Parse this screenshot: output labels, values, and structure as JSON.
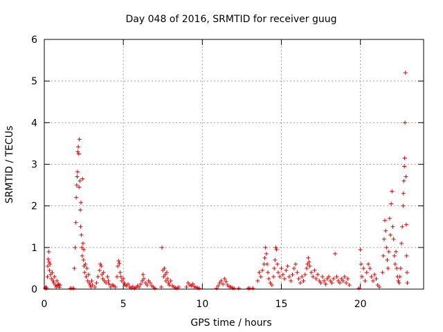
{
  "chart_data": {
    "type": "scatter",
    "title": "Day 048 of 2016, SRMTID for receiver guug",
    "xlabel": "GPS time / hours",
    "ylabel": "SRMTID / TECUs",
    "xlim": [
      0,
      24
    ],
    "ylim": [
      0,
      6
    ],
    "xticks": [
      0,
      5,
      10,
      15,
      20
    ],
    "yticks": [
      0,
      1,
      2,
      3,
      4,
      5,
      6
    ],
    "grid": true,
    "marker": "+",
    "color": "#e00000",
    "series": [
      {
        "name": "SRMTID",
        "points": [
          [
            0.05,
            0.02
          ],
          [
            0.1,
            0.05
          ],
          [
            0.15,
            0.02
          ],
          [
            0.2,
            0.3
          ],
          [
            0.22,
            0.55
          ],
          [
            0.25,
            0.72
          ],
          [
            0.28,
            0.9
          ],
          [
            0.3,
            0.65
          ],
          [
            0.33,
            0.45
          ],
          [
            0.36,
            0.6
          ],
          [
            0.4,
            0.35
          ],
          [
            0.45,
            0.25
          ],
          [
            0.5,
            0.4
          ],
          [
            0.55,
            0.2
          ],
          [
            0.6,
            0.15
          ],
          [
            0.65,
            0.3
          ],
          [
            0.7,
            0.1
          ],
          [
            0.75,
            0.05
          ],
          [
            0.8,
            0.2
          ],
          [
            0.85,
            0.08
          ],
          [
            0.9,
            0.12
          ],
          [
            0.95,
            0.04
          ],
          [
            1.0,
            0.1
          ],
          [
            1.65,
            0.02
          ],
          [
            1.75,
            0.02
          ],
          [
            1.85,
            0.02
          ],
          [
            1.9,
            0.5
          ],
          [
            1.95,
            1.0
          ],
          [
            2.0,
            1.6
          ],
          [
            2.02,
            2.2
          ],
          [
            2.05,
            2.5
          ],
          [
            2.08,
            2.7
          ],
          [
            2.1,
            2.82
          ],
          [
            2.12,
            3.3
          ],
          [
            2.15,
            3.42
          ],
          [
            2.18,
            3.25
          ],
          [
            2.2,
            2.45
          ],
          [
            2.22,
            3.6
          ],
          [
            2.25,
            2.6
          ],
          [
            2.28,
            1.9
          ],
          [
            2.3,
            1.5
          ],
          [
            2.32,
            2.08
          ],
          [
            2.35,
            1.3
          ],
          [
            2.38,
            1.0
          ],
          [
            2.4,
            0.8
          ],
          [
            2.42,
            2.65
          ],
          [
            2.45,
            1.1
          ],
          [
            2.48,
            0.7
          ],
          [
            2.5,
            0.95
          ],
          [
            2.52,
            0.55
          ],
          [
            2.55,
            0.4
          ],
          [
            2.6,
            0.6
          ],
          [
            2.65,
            0.3
          ],
          [
            2.7,
            0.5
          ],
          [
            2.75,
            0.2
          ],
          [
            2.8,
            0.35
          ],
          [
            2.85,
            0.15
          ],
          [
            2.9,
            0.1
          ],
          [
            2.95,
            0.05
          ],
          [
            3.0,
            0.2
          ],
          [
            3.05,
            0.1
          ],
          [
            3.2,
            0.05
          ],
          [
            3.3,
            0.15
          ],
          [
            3.4,
            0.3
          ],
          [
            3.5,
            0.45
          ],
          [
            3.55,
            0.6
          ],
          [
            3.6,
            0.55
          ],
          [
            3.65,
            0.35
          ],
          [
            3.7,
            0.25
          ],
          [
            3.75,
            0.4
          ],
          [
            3.8,
            0.2
          ],
          [
            3.9,
            0.15
          ],
          [
            4.0,
            0.3
          ],
          [
            4.05,
            0.2
          ],
          [
            4.1,
            0.12
          ],
          [
            4.2,
            0.05
          ],
          [
            4.3,
            0.1
          ],
          [
            4.4,
            0.08
          ],
          [
            4.5,
            0.05
          ],
          [
            4.6,
            0.3
          ],
          [
            4.65,
            0.55
          ],
          [
            4.7,
            0.68
          ],
          [
            4.75,
            0.62
          ],
          [
            4.8,
            0.4
          ],
          [
            4.85,
            0.3
          ],
          [
            4.9,
            0.2
          ],
          [
            5.0,
            0.25
          ],
          [
            5.05,
            0.15
          ],
          [
            5.1,
            0.1
          ],
          [
            5.2,
            0.08
          ],
          [
            5.3,
            0.12
          ],
          [
            5.4,
            0.05
          ],
          [
            5.5,
            0.03
          ],
          [
            5.6,
            0.06
          ],
          [
            5.7,
            0.02
          ],
          [
            5.8,
            0.04
          ],
          [
            5.9,
            0.08
          ],
          [
            6.0,
            0.05
          ],
          [
            6.1,
            0.12
          ],
          [
            6.2,
            0.2
          ],
          [
            6.25,
            0.35
          ],
          [
            6.3,
            0.25
          ],
          [
            6.4,
            0.15
          ],
          [
            6.5,
            0.1
          ],
          [
            6.6,
            0.2
          ],
          [
            6.7,
            0.15
          ],
          [
            6.8,
            0.08
          ],
          [
            6.9,
            0.05
          ],
          [
            7.0,
            0.02
          ],
          [
            7.4,
            0.05
          ],
          [
            7.45,
            1.0
          ],
          [
            7.5,
            0.45
          ],
          [
            7.55,
            0.3
          ],
          [
            7.6,
            0.5
          ],
          [
            7.65,
            0.35
          ],
          [
            7.7,
            0.2
          ],
          [
            7.75,
            0.4
          ],
          [
            7.8,
            0.25
          ],
          [
            7.85,
            0.15
          ],
          [
            7.9,
            0.1
          ],
          [
            8.0,
            0.2
          ],
          [
            8.1,
            0.08
          ],
          [
            8.2,
            0.05
          ],
          [
            8.3,
            0.03
          ],
          [
            8.4,
            0.02
          ],
          [
            8.5,
            0.05
          ],
          [
            9.0,
            0.05
          ],
          [
            9.1,
            0.15
          ],
          [
            9.2,
            0.1
          ],
          [
            9.3,
            0.08
          ],
          [
            9.4,
            0.12
          ],
          [
            9.5,
            0.06
          ],
          [
            9.6,
            0.04
          ],
          [
            9.7,
            0.03
          ],
          [
            9.8,
            0.02
          ],
          [
            10.9,
            0.02
          ],
          [
            11.0,
            0.08
          ],
          [
            11.1,
            0.15
          ],
          [
            11.2,
            0.2
          ],
          [
            11.3,
            0.12
          ],
          [
            11.4,
            0.25
          ],
          [
            11.5,
            0.18
          ],
          [
            11.6,
            0.1
          ],
          [
            11.7,
            0.06
          ],
          [
            11.8,
            0.05
          ],
          [
            11.9,
            0.03
          ],
          [
            12.0,
            0.02
          ],
          [
            12.3,
            0.02
          ],
          [
            12.9,
            0.02
          ],
          [
            13.0,
            0.02
          ],
          [
            13.2,
            0.02
          ],
          [
            13.5,
            0.2
          ],
          [
            13.6,
            0.4
          ],
          [
            13.7,
            0.3
          ],
          [
            13.8,
            0.45
          ],
          [
            13.9,
            0.6
          ],
          [
            13.95,
            0.75
          ],
          [
            14.0,
            1.0
          ],
          [
            14.05,
            0.85
          ],
          [
            14.1,
            0.6
          ],
          [
            14.15,
            0.4
          ],
          [
            14.2,
            0.25
          ],
          [
            14.3,
            0.15
          ],
          [
            14.4,
            0.1
          ],
          [
            14.5,
            0.3
          ],
          [
            14.55,
            0.5
          ],
          [
            14.6,
            0.7
          ],
          [
            14.65,
            1.0
          ],
          [
            14.7,
            0.95
          ],
          [
            14.75,
            0.6
          ],
          [
            14.8,
            0.4
          ],
          [
            14.9,
            0.3
          ],
          [
            15.0,
            0.5
          ],
          [
            15.1,
            0.35
          ],
          [
            15.2,
            0.25
          ],
          [
            15.3,
            0.45
          ],
          [
            15.4,
            0.55
          ],
          [
            15.5,
            0.3
          ],
          [
            15.6,
            0.2
          ],
          [
            15.7,
            0.35
          ],
          [
            15.8,
            0.5
          ],
          [
            15.9,
            0.6
          ],
          [
            16.0,
            0.4
          ],
          [
            16.1,
            0.25
          ],
          [
            16.2,
            0.15
          ],
          [
            16.3,
            0.3
          ],
          [
            16.4,
            0.2
          ],
          [
            16.5,
            0.35
          ],
          [
            16.6,
            0.5
          ],
          [
            16.65,
            0.6
          ],
          [
            16.7,
            0.75
          ],
          [
            16.75,
            0.65
          ],
          [
            16.8,
            0.55
          ],
          [
            16.9,
            0.4
          ],
          [
            17.0,
            0.3
          ],
          [
            17.1,
            0.45
          ],
          [
            17.2,
            0.25
          ],
          [
            17.3,
            0.35
          ],
          [
            17.4,
            0.2
          ],
          [
            17.5,
            0.15
          ],
          [
            17.6,
            0.3
          ],
          [
            17.7,
            0.2
          ],
          [
            17.8,
            0.12
          ],
          [
            17.9,
            0.25
          ],
          [
            18.0,
            0.3
          ],
          [
            18.1,
            0.2
          ],
          [
            18.2,
            0.15
          ],
          [
            18.3,
            0.25
          ],
          [
            18.4,
            0.85
          ],
          [
            18.5,
            0.3
          ],
          [
            18.6,
            0.2
          ],
          [
            18.7,
            0.15
          ],
          [
            18.8,
            0.25
          ],
          [
            18.9,
            0.2
          ],
          [
            19.0,
            0.3
          ],
          [
            19.1,
            0.15
          ],
          [
            19.2,
            0.25
          ],
          [
            19.3,
            0.1
          ],
          [
            19.9,
            0.02
          ],
          [
            20.0,
            0.95
          ],
          [
            20.05,
            0.6
          ],
          [
            20.1,
            0.3
          ],
          [
            20.2,
            0.5
          ],
          [
            20.3,
            0.2
          ],
          [
            20.4,
            0.4
          ],
          [
            20.5,
            0.6
          ],
          [
            20.6,
            0.5
          ],
          [
            20.7,
            0.3
          ],
          [
            20.8,
            0.2
          ],
          [
            20.9,
            0.35
          ],
          [
            21.0,
            0.25
          ],
          [
            21.1,
            0.1
          ],
          [
            21.2,
            0.05
          ],
          [
            21.4,
            0.4
          ],
          [
            21.45,
            0.8
          ],
          [
            21.5,
            1.2
          ],
          [
            21.55,
            1.65
          ],
          [
            21.6,
            1.4
          ],
          [
            21.65,
            1.0
          ],
          [
            21.7,
            0.7
          ],
          [
            21.75,
            0.5
          ],
          [
            21.8,
            0.9
          ],
          [
            21.85,
            1.7
          ],
          [
            21.9,
            1.3
          ],
          [
            21.95,
            2.05
          ],
          [
            22.0,
            2.35
          ],
          [
            22.05,
            1.5
          ],
          [
            22.1,
            1.2
          ],
          [
            22.15,
            0.8
          ],
          [
            22.2,
            0.6
          ],
          [
            22.25,
            0.9
          ],
          [
            22.3,
            0.5
          ],
          [
            22.35,
            0.3
          ],
          [
            22.4,
            0.2
          ],
          [
            22.45,
            0.15
          ],
          [
            22.5,
            0.3
          ],
          [
            22.55,
            0.5
          ],
          [
            22.6,
            1.1
          ],
          [
            22.65,
            1.5
          ],
          [
            22.7,
            2.0
          ],
          [
            22.72,
            2.3
          ],
          [
            22.75,
            2.6
          ],
          [
            22.78,
            2.95
          ],
          [
            22.8,
            3.15
          ],
          [
            22.82,
            4.0
          ],
          [
            22.85,
            5.2
          ],
          [
            22.88,
            2.7
          ],
          [
            22.9,
            1.55
          ],
          [
            22.92,
            0.8
          ],
          [
            22.95,
            0.4
          ],
          [
            22.97,
            0.15
          ]
        ]
      }
    ]
  }
}
